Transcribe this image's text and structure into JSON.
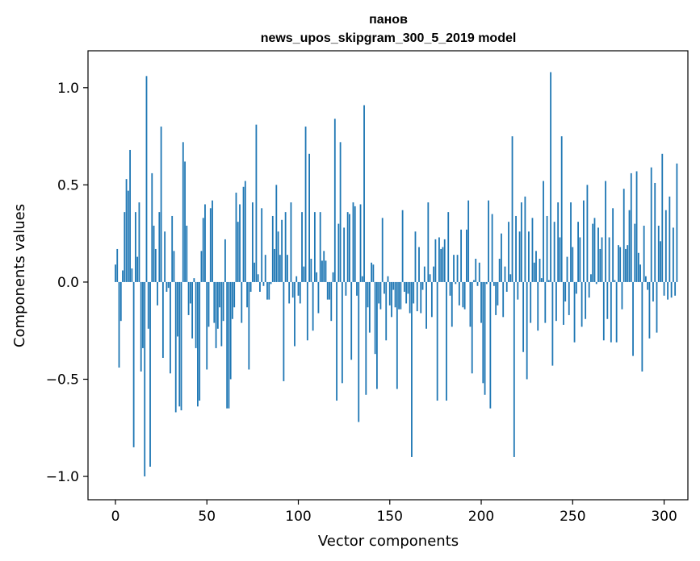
{
  "chart_data": {
    "type": "bar",
    "title_line1": "панов",
    "title_line2": "news_upos_skipgram_300_5_2019 model",
    "xlabel": "Vector components",
    "ylabel": "Components values",
    "xlim": [
      -15,
      313
    ],
    "ylim": [
      -1.12,
      1.19
    ],
    "xticks": [
      0,
      50,
      100,
      150,
      200,
      250,
      300
    ],
    "xtick_labels": [
      "0",
      "50",
      "100",
      "150",
      "200",
      "250",
      "300"
    ],
    "yticks": [
      -1.0,
      -0.5,
      0.0,
      0.5,
      1.0
    ],
    "ytick_labels": [
      "−1.0",
      "−0.5",
      "0.0",
      "0.5",
      "1.0"
    ],
    "bar_color": "#1f77b4",
    "values": [
      0.09,
      0.17,
      -0.44,
      -0.2,
      0.06,
      0.36,
      0.53,
      0.47,
      0.68,
      0.07,
      -0.85,
      0.36,
      0.13,
      0.41,
      -0.46,
      -0.34,
      -1.0,
      1.06,
      -0.24,
      -0.95,
      0.56,
      0.29,
      0.17,
      -0.12,
      0.36,
      0.8,
      -0.39,
      0.26,
      -0.05,
      -0.03,
      -0.47,
      0.34,
      0.16,
      -0.67,
      -0.28,
      -0.64,
      -0.66,
      0.72,
      0.62,
      0.29,
      -0.17,
      -0.11,
      -0.29,
      0.02,
      -0.34,
      -0.64,
      -0.61,
      0.16,
      0.33,
      0.4,
      -0.45,
      -0.23,
      0.38,
      0.42,
      -0.21,
      -0.34,
      -0.24,
      -0.13,
      -0.33,
      -0.2,
      0.22,
      -0.65,
      -0.65,
      -0.5,
      -0.19,
      -0.13,
      0.46,
      0.31,
      0.4,
      -0.21,
      0.49,
      0.52,
      -0.13,
      -0.45,
      -0.05,
      0.41,
      0.1,
      0.81,
      0.04,
      -0.05,
      0.38,
      -0.02,
      0.14,
      -0.09,
      -0.09,
      -0.01,
      0.34,
      0.17,
      0.5,
      0.26,
      0.14,
      0.32,
      -0.51,
      0.36,
      0.14,
      -0.11,
      0.41,
      -0.08,
      -0.33,
      0.03,
      -0.07,
      -0.11,
      0.36,
      0.08,
      0.8,
      -0.3,
      0.66,
      0.12,
      -0.25,
      0.36,
      0.05,
      -0.16,
      0.36,
      0.11,
      0.16,
      0.11,
      -0.09,
      -0.09,
      -0.2,
      0.05,
      0.84,
      -0.61,
      0.3,
      0.72,
      -0.52,
      0.28,
      -0.07,
      0.36,
      0.35,
      -0.4,
      0.41,
      0.39,
      -0.07,
      -0.72,
      0.4,
      0.03,
      0.91,
      -0.58,
      -0.13,
      -0.26,
      0.1,
      0.09,
      -0.37,
      -0.55,
      -0.11,
      -0.14,
      0.33,
      -0.06,
      -0.3,
      0.03,
      -0.12,
      -0.18,
      -0.04,
      -0.13,
      -0.55,
      -0.14,
      -0.14,
      0.37,
      -0.05,
      -0.11,
      -0.06,
      -0.16,
      -0.9,
      -0.11,
      0.26,
      -0.15,
      0.18,
      -0.16,
      -0.04,
      0.08,
      -0.24,
      0.41,
      0.04,
      -0.18,
      0.08,
      0.22,
      -0.61,
      0.23,
      0.17,
      0.18,
      0.22,
      -0.61,
      0.36,
      -0.07,
      -0.23,
      0.14,
      -0.01,
      0.14,
      -0.12,
      0.27,
      -0.13,
      -0.14,
      0.27,
      0.42,
      -0.23,
      -0.47,
      0.01,
      0.12,
      -0.02,
      0.1,
      -0.21,
      -0.52,
      -0.58,
      -0.01,
      0.42,
      -0.65,
      0.35,
      -0.02,
      -0.17,
      -0.12,
      0.12,
      0.25,
      -0.18,
      0.08,
      -0.05,
      0.31,
      0.04,
      0.75,
      -0.9,
      0.34,
      -0.09,
      0.26,
      0.41,
      -0.36,
      0.44,
      -0.5,
      0.26,
      -0.21,
      0.33,
      0.1,
      0.16,
      -0.25,
      0.12,
      0.02,
      0.52,
      -0.21,
      0.34,
      0.01,
      1.08,
      -0.43,
      0.31,
      -0.2,
      0.41,
      0.23,
      0.75,
      -0.22,
      -0.1,
      0.13,
      -0.17,
      0.41,
      0.18,
      -0.31,
      -0.06,
      0.31,
      0.23,
      -0.23,
      0.42,
      -0.19,
      0.5,
      -0.08,
      0.04,
      0.3,
      0.33,
      -0.01,
      0.28,
      0.17,
      0.23,
      -0.3,
      0.52,
      -0.19,
      0.23,
      -0.31,
      0.38,
      0.01,
      -0.31,
      0.19,
      0.18,
      -0.14,
      0.48,
      0.17,
      0.19,
      0.37,
      0.56,
      -0.38,
      0.3,
      0.57,
      0.15,
      0.09,
      -0.46,
      0.29,
      0.03,
      -0.04,
      -0.29,
      0.59,
      -0.1,
      0.51,
      -0.26,
      0.29,
      0.21,
      0.66,
      -0.07,
      0.37,
      -0.09,
      0.44,
      -0.08,
      0.28,
      -0.07,
      0.61
    ]
  }
}
